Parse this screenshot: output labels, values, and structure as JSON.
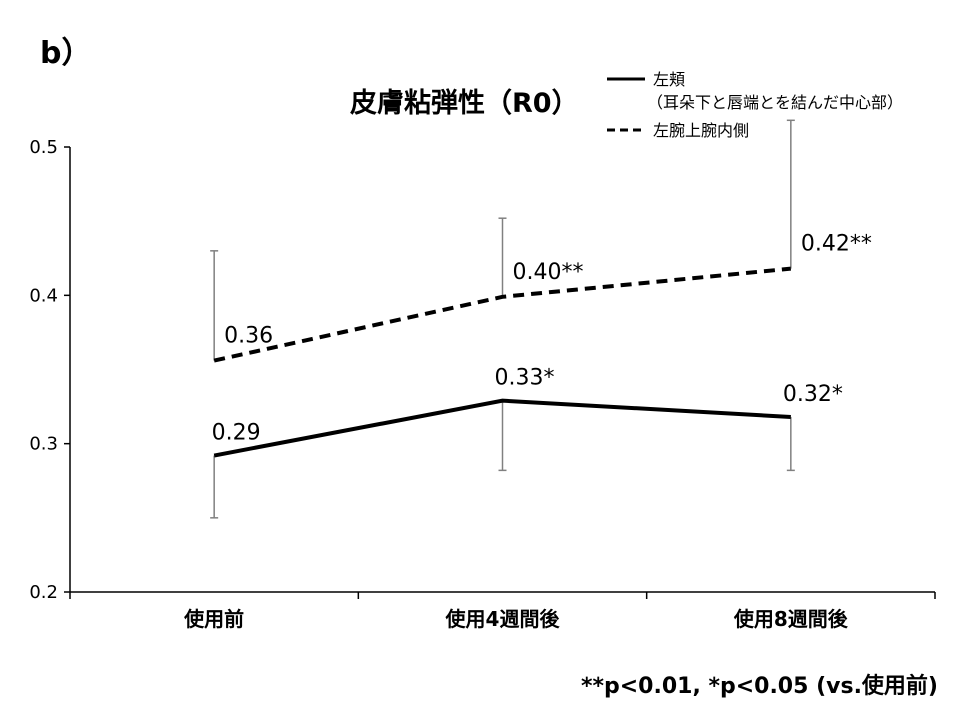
{
  "panel_label": "b）",
  "footnote": "**p<0.01, *p<0.05 (vs.使用前)",
  "chart_data": {
    "type": "line",
    "title": "皮膚粘弾性（R0）",
    "categories": [
      "使用前",
      "使用4週間後",
      "使用8週間後"
    ],
    "ylim": [
      0.2,
      0.5
    ],
    "yticks": [
      "0.2",
      "0.3",
      "0.4",
      "0.5"
    ],
    "grid": false,
    "legend_position": "top-right",
    "error_bar_color": "#808080",
    "series": [
      {
        "name": "左頬",
        "name_line2": "（耳朵下と唇端とを結んだ中心部）",
        "style": "solid",
        "values": [
          0.292,
          0.329,
          0.318
        ],
        "error_bar_end": [
          0.25,
          0.282,
          0.282
        ],
        "labels": [
          "0.29",
          "0.33*",
          "0.32*"
        ]
      },
      {
        "name": "左腕上腕内側",
        "style": "dashed",
        "values": [
          0.356,
          0.399,
          0.418
        ],
        "error_bar_end": [
          0.43,
          0.452,
          0.518
        ],
        "labels": [
          "0.36",
          "0.40**",
          "0.42**"
        ]
      }
    ]
  }
}
